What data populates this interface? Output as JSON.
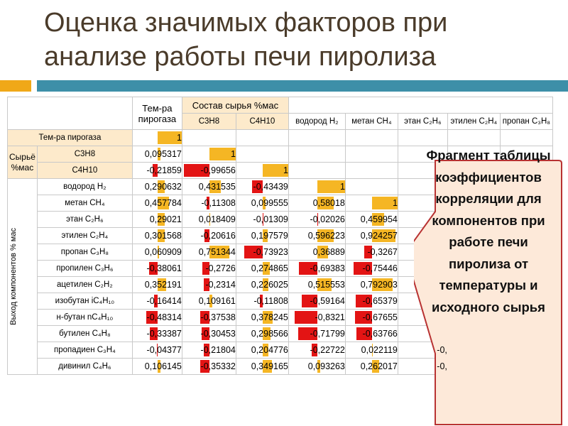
{
  "title": "Оценка значимых факторов при анализе работы печи пиролиза",
  "table": {
    "hdr_temp": "Тем-ра пирогаза",
    "hdr_comp": "Состав сырья %мас",
    "hdr_cols": [
      "С3Н8",
      "С4Н10",
      "водород H₂",
      "метан CH₄",
      "этан C₂H₆",
      "этилен C₂H₄",
      "пропан C₃H₈"
    ],
    "group_feed": "Сырьё %мас",
    "group_yield": "Выход компонентов % мас",
    "rows": [
      {
        "label": "Тем-ра пирогаза",
        "values": [
          "1"
        ]
      },
      {
        "label": "С3Н8",
        "values": [
          "0,095317",
          "1"
        ]
      },
      {
        "label": "С4Н10",
        "values": [
          "-0,21859",
          "-0,99656",
          "1"
        ]
      },
      {
        "label": "водород H₂",
        "values": [
          "0,290632",
          "0,431535",
          "-0,43439",
          "1"
        ]
      },
      {
        "label": "метан CH₄",
        "values": [
          "0,457784",
          "-0,11308",
          "0,099555",
          "0,58018",
          "1"
        ]
      },
      {
        "label": "этан C₂H₆",
        "values": [
          "0,29021",
          "0,018409",
          "-0,01309",
          "-0,02026",
          "0,459954"
        ]
      },
      {
        "label": "этилен C₂H₄",
        "values": [
          "0,301568",
          "-0,20616",
          "0,197579",
          "0,596223",
          "0,924257"
        ]
      },
      {
        "label": "пропан C₃H₈",
        "values": [
          "0,060909",
          "0,751344",
          "-0,73923",
          "0,36889",
          "-0,3267"
        ]
      },
      {
        "label": "пропилен C₃H₆",
        "values": [
          "-0,38061",
          "-0,2726",
          "0,274865",
          "-0,69383",
          "-0,75446"
        ]
      },
      {
        "label": "ацетилен C₂H₂",
        "values": [
          "0,352191",
          "-0,2314",
          "0,226025",
          "0,515553",
          "0,792903"
        ]
      },
      {
        "label": "изобутан iC₄H₁₀",
        "values": [
          "-0,16414",
          "0,109161",
          "-0,11808",
          "-0,59164",
          "-0,65379"
        ]
      },
      {
        "label": "н-бутан nC₄H₁₀",
        "values": [
          "-0,48314",
          "-0,37538",
          "0,378245",
          "-0,8321",
          "-0,67655"
        ]
      },
      {
        "label": "бутилен C₄H₈",
        "values": [
          "-0,33387",
          "-0,30453",
          "0,298566",
          "-0,71799",
          "-0,63766"
        ]
      },
      {
        "label": "пропадиен C₃H₄",
        "values": [
          "-0,04377",
          "-0,21804",
          "0,204776",
          "-0,22722",
          "0,022119",
          "-0,"
        ]
      },
      {
        "label": "дивинил C₄H₆",
        "values": [
          "0,106145",
          "-0,35332",
          "0,349165",
          "0,093263",
          "0,262017",
          "-0,"
        ]
      }
    ]
  },
  "callout": {
    "text": "Фрагмент таблицы коэффициентов корреляции для компонентов при работе печи пиролиза от температуры и исходного сырья",
    "fill": "#fde9d9",
    "stroke": "#b83232"
  },
  "colors": {
    "accent_orange": "#f0a818",
    "accent_teal": "#3d8fa8",
    "positive": "#f5b624",
    "negative": "#e31414"
  }
}
